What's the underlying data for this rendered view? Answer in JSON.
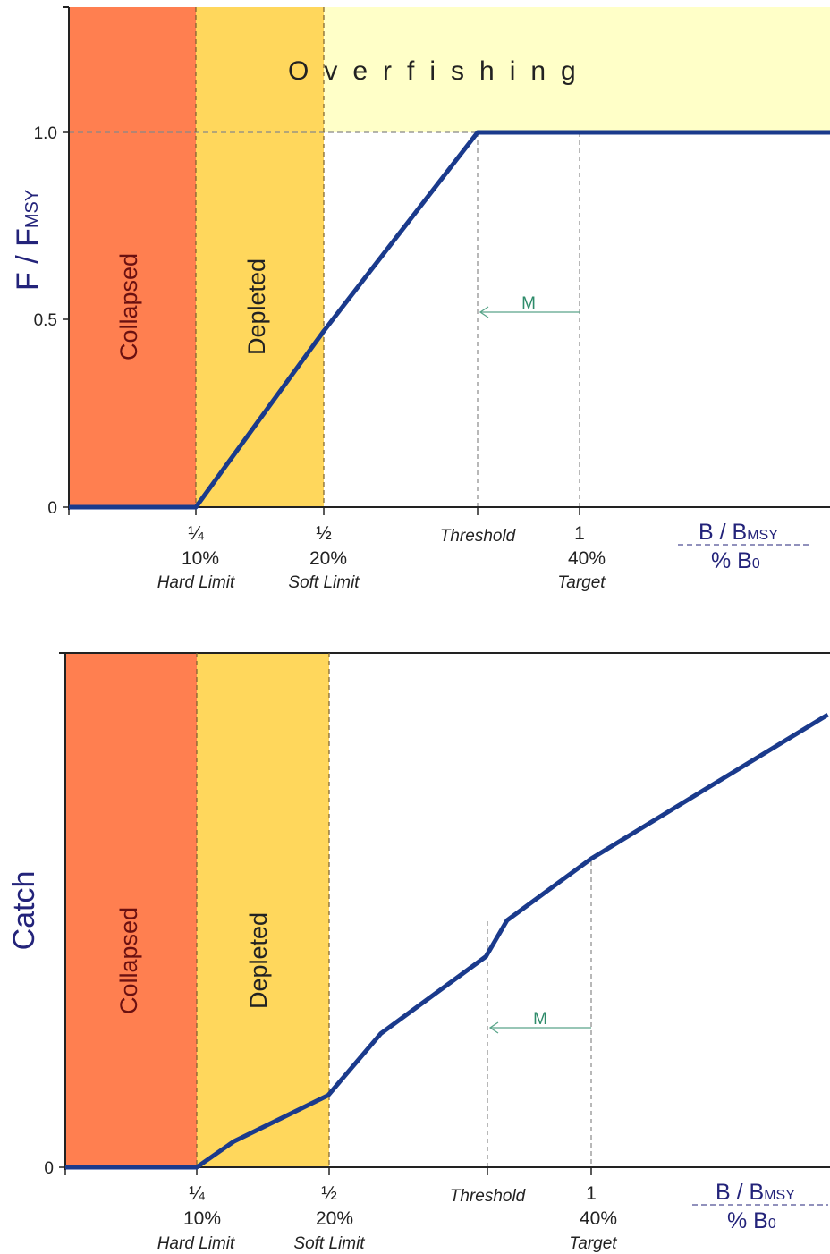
{
  "chart_data": [
    {
      "type": "line",
      "title": "",
      "ylabel": "F / F",
      "ylabel_subscript": "MSY",
      "xlabel_top": "B / B",
      "xlabel_top_subscript": "MSY",
      "xlabel_bottom": "% B",
      "xlabel_bottom_subscript": "0",
      "ylim": [
        0,
        1.3
      ],
      "yticks": [
        {
          "value": 0,
          "label": "0"
        },
        {
          "value": 0.5,
          "label": "0.5"
        },
        {
          "value": 1.0,
          "label": "1.0"
        }
      ],
      "xticks": [
        {
          "key": "hard",
          "ratio": "¼",
          "pct": "10%",
          "name": "Hard Limit"
        },
        {
          "key": "soft",
          "ratio": "½",
          "pct": "20%",
          "name": "Soft Limit"
        },
        {
          "key": "threshold",
          "ratio": "",
          "pct": "",
          "name": "Threshold"
        },
        {
          "key": "target",
          "ratio": "1",
          "pct": "40%",
          "name": "Target"
        }
      ],
      "zones": [
        {
          "name": "Collapsed",
          "color": "#ff7f50"
        },
        {
          "name": "Depleted",
          "color": "#ffd75c"
        },
        {
          "name": "Overfishing",
          "color": "#ffffc8"
        }
      ],
      "reference_line": {
        "y": 1.0,
        "style": "dashed"
      },
      "arrow_label": "M",
      "arrow_y": 0.52,
      "series": [
        {
          "color": "#1a3a8c",
          "points": [
            {
              "x": "origin",
              "y": 0
            },
            {
              "x": "hard",
              "y": 0
            },
            {
              "x": "soft",
              "y": 0.47
            },
            {
              "x": "threshold",
              "y": 1.0
            },
            {
              "x": "end",
              "y": 1.0
            }
          ]
        }
      ]
    },
    {
      "type": "line",
      "title": "",
      "ylabel": "Catch",
      "xlabel_top": "B / B",
      "xlabel_top_subscript": "MSY",
      "xlabel_bottom": "% B",
      "xlabel_bottom_subscript": "0",
      "ylim": [
        0,
        1.0
      ],
      "yticks": [
        {
          "value": 0,
          "label": "0"
        }
      ],
      "xticks": [
        {
          "key": "hard",
          "ratio": "¼",
          "pct": "10%",
          "name": "Hard Limit"
        },
        {
          "key": "soft",
          "ratio": "½",
          "pct": "20%",
          "name": "Soft Limit"
        },
        {
          "key": "threshold",
          "ratio": "",
          "pct": "",
          "name": "Threshold"
        },
        {
          "key": "target",
          "ratio": "1",
          "pct": "40%",
          "name": "Target"
        }
      ],
      "zones": [
        {
          "name": "Collapsed",
          "color": "#ff7f50"
        },
        {
          "name": "Depleted",
          "color": "#ffd75c"
        }
      ],
      "arrow_label": "M",
      "arrow_y": 0.27,
      "series": [
        {
          "color": "#1a3a8c",
          "points": [
            {
              "x": 0.0,
              "y": 0
            },
            {
              "x": 0.25,
              "y": 0
            },
            {
              "x": 0.32,
              "y": 0.05
            },
            {
              "x": 0.5,
              "y": 0.14
            },
            {
              "x": 0.6,
              "y": 0.26
            },
            {
              "x": 0.8,
              "y": 0.41
            },
            {
              "x": 0.84,
              "y": 0.48
            },
            {
              "x": 1.0,
              "y": 0.6
            },
            {
              "x": 1.45,
              "y": 0.88
            }
          ]
        }
      ]
    }
  ]
}
